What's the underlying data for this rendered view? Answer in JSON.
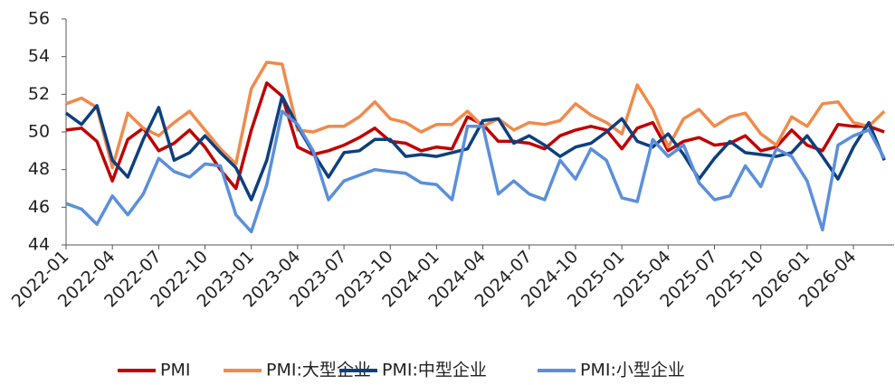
{
  "chart_data": {
    "type": "line",
    "categories": [
      "2022-01",
      null,
      null,
      "2022-04",
      null,
      null,
      "2022-07",
      null,
      null,
      "2022-10",
      null,
      null,
      "2023-01",
      null,
      null,
      "2023-04",
      null,
      null,
      "2023-07",
      null,
      null,
      "2023-10",
      null,
      null,
      "2024-01",
      null,
      null,
      "2024-04",
      null,
      null,
      "2024-07",
      null,
      null,
      "2024-10",
      null,
      null,
      "2025-01",
      null,
      null,
      "2025-04",
      null,
      null,
      "2025-07",
      null,
      null,
      "2025-10",
      null,
      null,
      "2026-01",
      null,
      null,
      "2026-04",
      null,
      null
    ],
    "series": [
      {
        "name": "PMI",
        "color": "#c00000",
        "values": [
          50.1,
          50.2,
          49.5,
          47.4,
          49.6,
          50.2,
          49.0,
          49.4,
          50.1,
          49.2,
          48.0,
          47.0,
          50.1,
          52.6,
          51.9,
          49.2,
          48.8,
          49.0,
          49.3,
          49.7,
          50.2,
          49.5,
          49.4,
          49.0,
          49.2,
          49.1,
          50.8,
          50.4,
          49.5,
          49.5,
          49.4,
          49.1,
          49.8,
          50.1,
          50.3,
          50.1,
          49.1,
          50.2,
          50.5,
          49.0,
          49.5,
          49.7,
          49.3,
          49.4,
          49.8,
          49.0,
          49.2,
          50.1,
          49.3,
          49.0,
          50.4,
          50.3,
          50.3,
          50.0
        ]
      },
      {
        "name": "PMI:大型企业",
        "color": "#f08a4b",
        "values": [
          51.5,
          51.8,
          51.3,
          48.1,
          51.0,
          50.2,
          49.8,
          50.5,
          51.1,
          50.1,
          49.1,
          48.3,
          52.3,
          53.7,
          53.6,
          50.1,
          50.0,
          50.3,
          50.3,
          50.8,
          51.6,
          50.7,
          50.5,
          50.0,
          50.4,
          50.4,
          51.1,
          50.3,
          50.7,
          50.1,
          50.5,
          50.4,
          50.6,
          51.5,
          50.9,
          50.5,
          49.9,
          52.5,
          51.2,
          49.2,
          50.7,
          51.2,
          50.3,
          50.8,
          51.0,
          49.9,
          49.3,
          50.8,
          50.3,
          51.5,
          51.6,
          50.5,
          50.3,
          51.1
        ]
      },
      {
        "name": "PMI:中型企业",
        "color": "#0e3f7e",
        "values": [
          51.0,
          50.4,
          51.4,
          48.5,
          47.6,
          49.6,
          51.3,
          48.5,
          48.9,
          49.8,
          48.9,
          48.1,
          46.4,
          48.5,
          51.9,
          50.3,
          48.9,
          47.6,
          48.9,
          49.0,
          49.6,
          49.6,
          48.7,
          48.8,
          48.7,
          48.9,
          49.1,
          50.6,
          50.7,
          49.4,
          49.8,
          49.3,
          48.7,
          49.2,
          49.4,
          50.0,
          50.7,
          49.5,
          49.2,
          49.9,
          48.8,
          47.5,
          48.6,
          49.5,
          48.9,
          48.8,
          48.7,
          48.9,
          49.8,
          48.7,
          47.5,
          49.2,
          50.5,
          48.5
        ]
      },
      {
        "name": "PMI:小型企业",
        "color": "#5b8fdb",
        "values": [
          46.2,
          45.9,
          45.1,
          46.6,
          45.6,
          46.7,
          48.6,
          47.9,
          47.6,
          48.3,
          48.2,
          45.6,
          44.7,
          47.2,
          51.1,
          50.4,
          49.0,
          46.4,
          47.4,
          47.7,
          48.0,
          47.9,
          47.8,
          47.3,
          47.2,
          46.4,
          50.3,
          50.3,
          46.7,
          47.4,
          46.7,
          46.4,
          48.5,
          47.5,
          49.1,
          48.5,
          46.5,
          46.3,
          49.6,
          48.7,
          49.3,
          47.3,
          46.4,
          46.6,
          48.2,
          47.1,
          49.1,
          48.7,
          47.4,
          44.8,
          49.3,
          49.8,
          50.1,
          48.6
        ]
      }
    ],
    "ylim": [
      44,
      56
    ],
    "yticks": [
      44,
      46,
      48,
      50,
      52,
      54,
      56
    ]
  }
}
